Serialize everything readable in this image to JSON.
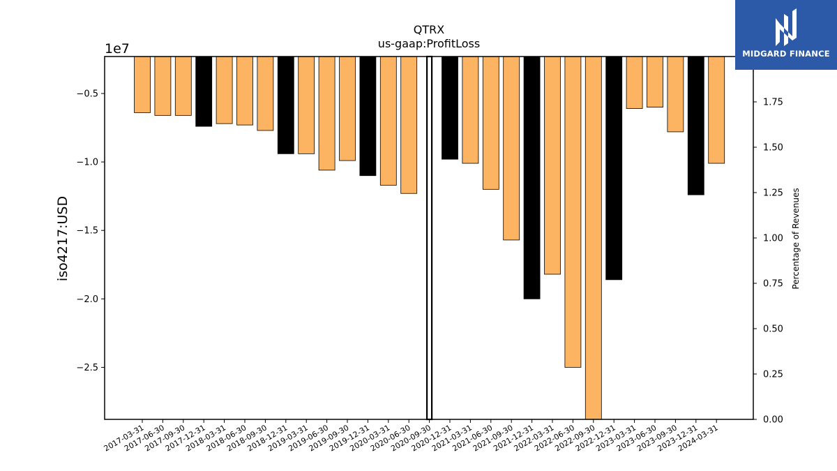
{
  "chart_data": {
    "type": "bar",
    "title": "QTRX",
    "subtitle": "us-gaap:ProfitLoss",
    "ylabel": "iso4217:USD",
    "y_offset_label": "1e7",
    "y2label": "Percentage of Revenues",
    "ylim": [
      -28800000,
      -2300000
    ],
    "y_ticks": [
      -5000000,
      -10000000,
      -15000000,
      -20000000,
      -25000000
    ],
    "y_tick_labels": [
      "−0.5",
      "−1.0",
      "−1.5",
      "−2.0",
      "−2.5"
    ],
    "y2lim": [
      0,
      2.0
    ],
    "y2_ticks": [
      0,
      0.25,
      0.5,
      0.75,
      1.0,
      1.25,
      1.5,
      1.75
    ],
    "y2_tick_labels": [
      "0.00",
      "0.25",
      "0.50",
      "0.75",
      "1.00",
      "1.25",
      "1.50",
      "1.75"
    ],
    "grid": false,
    "colors": {
      "quarterly": "#fdb462",
      "annual": "#000000"
    },
    "categories": [
      "2017-03-31",
      "2017-06-30",
      "2017-09-30",
      "2017-12-31",
      "2018-03-31",
      "2018-06-30",
      "2018-09-30",
      "2018-12-31",
      "2019-03-31",
      "2019-06-30",
      "2019-09-30",
      "2019-12-31",
      "2020-03-31",
      "2020-06-30",
      "2020-09-30",
      "2020-12-31",
      "2021-03-31",
      "2021-06-30",
      "2021-09-30",
      "2021-12-31",
      "2022-03-31",
      "2022-06-30",
      "2022-09-30",
      "2022-12-31",
      "2023-03-31",
      "2023-06-30",
      "2023-09-30",
      "2023-12-31",
      "2024-03-31"
    ],
    "values": [
      -6400000,
      -6600000,
      -6600000,
      -7400000,
      -7200000,
      -7300000,
      -7700000,
      -9400000,
      -9400000,
      -10600000,
      -9900000,
      -11000000,
      -11700000,
      -12300000,
      null,
      -9800000,
      -10100000,
      -12000000,
      -15700000,
      -20000000,
      -18200000,
      -25000000,
      -28800000,
      -18600000,
      -6100000,
      -6000000,
      -7800000,
      -12400000,
      -10100000
    ],
    "period_type": [
      "Q",
      "Q",
      "Q",
      "A",
      "Q",
      "Q",
      "Q",
      "A",
      "Q",
      "Q",
      "Q",
      "A",
      "Q",
      "Q",
      "A",
      "A",
      "Q",
      "Q",
      "Q",
      "A",
      "Q",
      "Q",
      "Q",
      "A",
      "Q",
      "Q",
      "Q",
      "A",
      "Q"
    ]
  },
  "logo": {
    "text": "MIDGARD FINANCE",
    "bg_color": "#2d5aa8"
  }
}
